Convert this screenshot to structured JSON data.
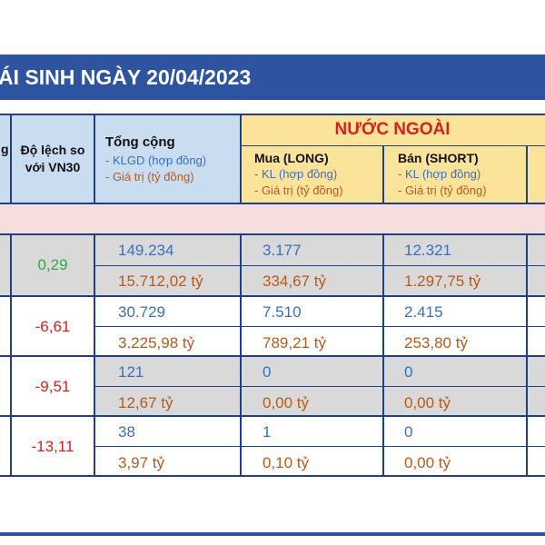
{
  "banner": {
    "title": "ÁI SINH NGÀY 20/04/2023"
  },
  "header": {
    "col_partial_left": "g",
    "deviation": {
      "line1": "Độ lệch so",
      "line2": "với VN30"
    },
    "total": {
      "title": "Tổng cộng",
      "sub1": "- KLGD (hợp đồng)",
      "sub2": "- Giá trị (tỷ đồng)"
    },
    "foreign": {
      "title": "NƯỚC NGOÀI"
    },
    "buy": {
      "title": "Mua (LONG)",
      "sub1": "- KL (hợp đồng)",
      "sub2": "- Giá trị (tỷ đồng)"
    },
    "sell": {
      "title": "Bán (SHORT)",
      "sub1": "- KL (hợp đồng)",
      "sub2": "- Giá trị (tỷ đồng)"
    }
  },
  "rows": [
    {
      "deviation": "0,29",
      "deviation_color": "#2fa84a",
      "total_vol": "149.234",
      "total_val": "15.712,02 tỷ",
      "buy_vol": "3.177",
      "buy_val": "334,67 tỷ",
      "sell_vol": "12.321",
      "sell_val": "1.297,75 tỷ",
      "shaded": true
    },
    {
      "deviation": "-6,61",
      "deviation_color": "#d82020",
      "total_vol": "30.729",
      "total_val": "3.225,98 tỷ",
      "buy_vol": "7.510",
      "buy_val": "789,21 tỷ",
      "sell_vol": "2.415",
      "sell_val": "253,80 tỷ",
      "shaded": false
    },
    {
      "deviation": "-9,51",
      "deviation_color": "#d82020",
      "total_vol": "121",
      "total_val": "12,67 tỷ",
      "buy_vol": "0",
      "buy_val": "0,00 tỷ",
      "sell_vol": "0",
      "sell_val": "0,00 tỷ",
      "shaded": true
    },
    {
      "deviation": "-13,11",
      "deviation_color": "#d82020",
      "total_vol": "38",
      "total_val": "3,97 tỷ",
      "buy_vol": "1",
      "buy_val": "0,10 tỷ",
      "sell_vol": "0",
      "sell_val": "0,00 tỷ",
      "shaded": false
    }
  ],
  "colors": {
    "banner": "#2e54a0",
    "header_blue": "#c9dcf0",
    "header_yellow": "#fbe49a",
    "section_pink": "#f6dede",
    "volume_text": "#3a6fc0",
    "value_text": "#b85a1e"
  }
}
